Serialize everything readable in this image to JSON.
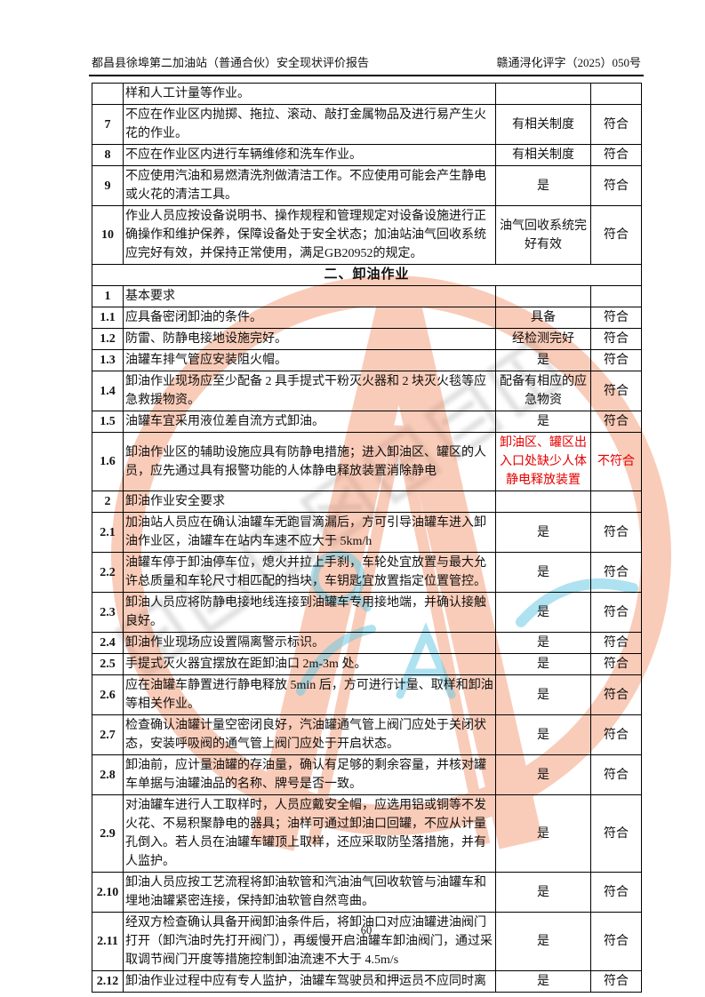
{
  "page": {
    "header_left": "都昌县徐埠第二加油站（普通合伙）安全现状评价报告",
    "header_right": "赣通浔化评字（2025）050号",
    "page_number": "60"
  },
  "colors": {
    "text": "#111111",
    "nonconform_red": "#e60000",
    "stamp_orange": "#ef7f52",
    "stamp_cyan": "#6ecbe3",
    "stamp_grey": "#8a8a8a"
  },
  "table": {
    "rows": [
      {
        "no": "",
        "desc": "样和人工计量等作业。",
        "status": "",
        "result": ""
      },
      {
        "no": "7",
        "desc": "不应在作业区内抛掷、拖拉、滚动、敲打金属物品及进行易产生火花的作业。",
        "status": "有相关制度",
        "result": "符合"
      },
      {
        "no": "8",
        "desc": "不应在作业区内进行车辆维修和洗车作业。",
        "status": "有相关制度",
        "result": "符合"
      },
      {
        "no": "9",
        "desc": "不应使用汽油和易燃清洗剂做清洁工作。不应使用可能会产生静电或火花的清洁工具。",
        "status": "是",
        "result": "符合"
      },
      {
        "no": "10",
        "desc": "作业人员应按设备说明书、操作规程和管理规定对设备设施进行正确操作和维护保养，保障设备处于安全状态；加油站油气回收系统应完好有效，并保持正常使用，满足GB20952的规定。",
        "status": "油气回收系统完好有效",
        "result": "符合"
      },
      {
        "section": "二、卸油作业"
      },
      {
        "no": "1",
        "desc": "基本要求",
        "status": "",
        "result": ""
      },
      {
        "no": "1.1",
        "desc": "应具备密闭卸油的条件。",
        "status": "具备",
        "result": "符合"
      },
      {
        "no": "1.2",
        "desc": "防雷、防静电接地设施完好。",
        "status": "经检测完好",
        "result": "符合"
      },
      {
        "no": "1.3",
        "desc": "油罐车排气管应安装阻火帽。",
        "status": "是",
        "result": "符合"
      },
      {
        "no": "1.4",
        "desc": "卸油作业现场应至少配备 2 具手提式干粉灭火器和 2 块灭火毯等应急救援物资。",
        "status": "配备有相应的应急物资",
        "result": "符合"
      },
      {
        "no": "1.5",
        "desc": "油罐车宜采用液位差自流方式卸油。",
        "status": "是",
        "result": "符合"
      },
      {
        "no": "1.6",
        "desc": "卸油作业区的辅助设施应具有防静电措施；进入卸油区、罐区的人员，应先通过具有报警功能的人体静电释放装置消除静电",
        "status": "卸油区、罐区出入口处缺少人体静电释放装置",
        "result": "不符合",
        "red": true
      },
      {
        "no": "2",
        "desc": "卸油作业安全要求",
        "status": "",
        "result": ""
      },
      {
        "no": "2.1",
        "desc": "加油站人员应在确认油罐车无跑冒滴漏后，方可引导油罐车进入卸油作业区，油罐车在站内车速不应大于 5km/h",
        "status": "是",
        "result": "符合"
      },
      {
        "no": "2.2",
        "desc": "油罐车停于卸油停车位，熄火并拉上手刹，车轮处宜放置与最大允许总质量和车轮尺寸相匹配的挡块，车钥匙宜放置指定位置管控。",
        "status": "是",
        "result": "符合"
      },
      {
        "no": "2.3",
        "desc": "卸油人员应将防静电接地线连接到油罐车专用接地端，并确认接触良好。",
        "status": "是",
        "result": "符合"
      },
      {
        "no": "2.4",
        "desc": "卸油作业现场应设置隔离警示标识。",
        "status": "是",
        "result": "符合"
      },
      {
        "no": "2.5",
        "desc": "手提式灭火器宜摆放在距卸油口 2m-3m 处。",
        "status": "是",
        "result": "符合"
      },
      {
        "no": "2.6",
        "desc": "应在油罐车静置进行静电释放 5min 后，方可进行计量、取样和卸油等相关作业。",
        "status": "是",
        "result": "符合"
      },
      {
        "no": "2.7",
        "desc": "检查确认油罐计量空密闭良好，汽油罐通气管上阀门应处于关闭状态，安装呼吸阀的通气管上阀门应处于开启状态。",
        "status": "是",
        "result": "符合"
      },
      {
        "no": "2.8",
        "desc": "卸油前，应计量油罐的存油量，确认有足够的剩余容量，并核对罐车单据与油罐油品的名称、牌号是否一致。",
        "status": "是",
        "result": "符合"
      },
      {
        "no": "2.9",
        "desc": "对油罐车进行人工取样时，人员应戴安全帽，应选用铝或铜等不发火花、不易积聚静电的器具；油样可通过卸油口回罐，不应从计量孔倒入。若人员在油罐车罐顶上取样，还应采取防坠落措施，并有人监护。",
        "status": "是",
        "result": "符合"
      },
      {
        "no": "2.10",
        "desc": "卸油人员应按工艺流程将卸油软管和汽油油气回收软管与油罐车和埋地油罐紧密连接，保持卸油软管自然弯曲。",
        "status": "是",
        "result": "符合"
      },
      {
        "no": "2.11",
        "desc": "经双方检查确认具备开阀卸油条件后，将卸油口对应油罐进油阀门打开（卸汽油时先打开阀门），再缓慢开启油罐车卸油阀门，通过采取调节阀门开度等措施控制卸油流速不大于 4.5m/s",
        "status": "是",
        "result": "符合"
      },
      {
        "no": "2.12",
        "desc": "卸油作业过程中应有专人监护，油罐车驾驶员和押运员不应同时离",
        "status": "是",
        "result": "符合"
      }
    ]
  }
}
